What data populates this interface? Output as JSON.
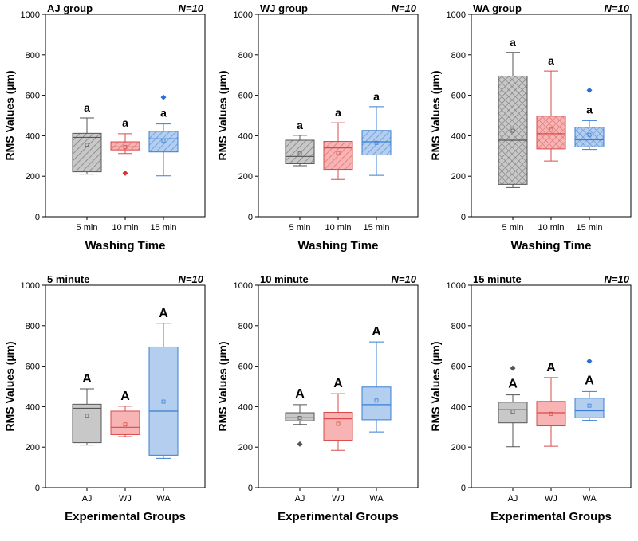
{
  "colors": {
    "gray_fill": "#c8c8c8",
    "gray_stroke": "#555555",
    "red_fill": "#f8b4b4",
    "red_stroke": "#d94a4a",
    "blue_fill": "#b3ceef",
    "blue_stroke": "#3a7ed0",
    "outlier_gray": "#555555",
    "outlier_red": "#e03030",
    "outlier_blue": "#2a6fd0"
  },
  "chart_data": [
    {
      "type": "box",
      "title": "AJ group",
      "n_label": "N=10",
      "xlabel": "Washing Time",
      "ylabel": "RMS Values (µm)",
      "ylim": [
        0,
        1000
      ],
      "yticks": [
        0,
        200,
        400,
        600,
        800,
        1000
      ],
      "categories": [
        "5 min",
        "10 min",
        "15 min"
      ],
      "pattern": "hatch",
      "annotation_case": "lower",
      "boxes": [
        {
          "label": "5 min",
          "color": "gray",
          "min": 210,
          "q1": 222,
          "median": 392,
          "q3": 412,
          "max": 488,
          "mean": 355,
          "outliers": [],
          "annotation": "a"
        },
        {
          "label": "10 min",
          "color": "red",
          "min": 312,
          "q1": 330,
          "median": 345,
          "q3": 370,
          "max": 410,
          "mean": 345,
          "outliers": [
            215
          ],
          "annotation": "a"
        },
        {
          "label": "15 min",
          "color": "blue",
          "min": 202,
          "q1": 320,
          "median": 385,
          "q3": 422,
          "max": 458,
          "mean": 375,
          "outliers": [
            590
          ],
          "annotation": "a"
        }
      ]
    },
    {
      "type": "box",
      "title": "WJ group",
      "n_label": "N=10",
      "xlabel": "Washing Time",
      "ylabel": "RMS Values (µm)",
      "ylim": [
        0,
        1000
      ],
      "yticks": [
        0,
        200,
        400,
        600,
        800,
        1000
      ],
      "categories": [
        "5 min",
        "10 min",
        "15 min"
      ],
      "pattern": "hatch",
      "annotation_case": "lower",
      "boxes": [
        {
          "label": "5 min",
          "color": "gray",
          "min": 252,
          "q1": 262,
          "median": 298,
          "q3": 378,
          "max": 402,
          "mean": 312,
          "outliers": [],
          "annotation": "a"
        },
        {
          "label": "10 min",
          "color": "red",
          "min": 184,
          "q1": 234,
          "median": 340,
          "q3": 372,
          "max": 464,
          "mean": 315,
          "outliers": [],
          "annotation": "a"
        },
        {
          "label": "15 min",
          "color": "blue",
          "min": 204,
          "q1": 305,
          "median": 370,
          "q3": 426,
          "max": 544,
          "mean": 365,
          "outliers": [],
          "annotation": "a"
        }
      ]
    },
    {
      "type": "box",
      "title": "WA group",
      "n_label": "N=10",
      "xlabel": "Washing Time",
      "ylabel": "RMS Values (µm)",
      "ylim": [
        0,
        1000
      ],
      "yticks": [
        0,
        200,
        400,
        600,
        800,
        1000
      ],
      "categories": [
        "5 min",
        "10 min",
        "15 min"
      ],
      "pattern": "crosshatch",
      "annotation_case": "lower",
      "boxes": [
        {
          "label": "5 min",
          "color": "gray",
          "min": 144,
          "q1": 160,
          "median": 378,
          "q3": 695,
          "max": 812,
          "mean": 425,
          "outliers": [],
          "annotation": "a"
        },
        {
          "label": "10 min",
          "color": "red",
          "min": 275,
          "q1": 335,
          "median": 410,
          "q3": 497,
          "max": 720,
          "mean": 430,
          "outliers": [],
          "annotation": "a"
        },
        {
          "label": "15 min",
          "color": "blue",
          "min": 332,
          "q1": 345,
          "median": 380,
          "q3": 442,
          "max": 475,
          "mean": 405,
          "outliers": [
            625
          ],
          "annotation": "a"
        }
      ]
    },
    {
      "type": "box",
      "title": "5 minute",
      "n_label": "N=10",
      "xlabel": "Experimental Groups",
      "ylabel": "RMS Values (µm)",
      "ylim": [
        0,
        1000
      ],
      "yticks": [
        0,
        200,
        400,
        600,
        800,
        1000
      ],
      "categories": [
        "AJ",
        "WJ",
        "WA"
      ],
      "pattern": "none",
      "annotation_case": "upper",
      "boxes": [
        {
          "label": "AJ",
          "color": "gray",
          "min": 210,
          "q1": 222,
          "median": 392,
          "q3": 412,
          "max": 488,
          "mean": 355,
          "outliers": [],
          "annotation": "A"
        },
        {
          "label": "WJ",
          "color": "red",
          "min": 252,
          "q1": 262,
          "median": 298,
          "q3": 378,
          "max": 402,
          "mean": 312,
          "outliers": [],
          "annotation": "A"
        },
        {
          "label": "WA",
          "color": "blue",
          "min": 144,
          "q1": 160,
          "median": 378,
          "q3": 695,
          "max": 812,
          "mean": 425,
          "outliers": [],
          "annotation": "A"
        }
      ]
    },
    {
      "type": "box",
      "title": "10 minute",
      "n_label": "N=10",
      "xlabel": "Experimental Groups",
      "ylabel": "RMS Values (µm)",
      "ylim": [
        0,
        1000
      ],
      "yticks": [
        0,
        200,
        400,
        600,
        800,
        1000
      ],
      "categories": [
        "AJ",
        "WJ",
        "WA"
      ],
      "pattern": "none",
      "annotation_case": "upper",
      "boxes": [
        {
          "label": "AJ",
          "color": "gray",
          "min": 312,
          "q1": 330,
          "median": 345,
          "q3": 370,
          "max": 410,
          "mean": 345,
          "outliers": [
            215
          ],
          "annotation": "A"
        },
        {
          "label": "WJ",
          "color": "red",
          "min": 184,
          "q1": 234,
          "median": 340,
          "q3": 372,
          "max": 464,
          "mean": 315,
          "outliers": [],
          "annotation": "A"
        },
        {
          "label": "WA",
          "color": "blue",
          "min": 275,
          "q1": 335,
          "median": 410,
          "q3": 497,
          "max": 720,
          "mean": 430,
          "outliers": [],
          "annotation": "A"
        }
      ]
    },
    {
      "type": "box",
      "title": "15 minute",
      "n_label": "N=10",
      "xlabel": "Experimental Groups",
      "ylabel": "RMS Values (µm)",
      "ylim": [
        0,
        1000
      ],
      "yticks": [
        0,
        200,
        400,
        600,
        800,
        1000
      ],
      "categories": [
        "AJ",
        "WJ",
        "WA"
      ],
      "pattern": "none",
      "annotation_case": "upper",
      "boxes": [
        {
          "label": "AJ",
          "color": "gray",
          "min": 202,
          "q1": 320,
          "median": 385,
          "q3": 422,
          "max": 458,
          "mean": 375,
          "outliers": [
            590
          ],
          "annotation": "A"
        },
        {
          "label": "WJ",
          "color": "red",
          "min": 204,
          "q1": 305,
          "median": 370,
          "q3": 426,
          "max": 544,
          "mean": 365,
          "outliers": [],
          "annotation": "A"
        },
        {
          "label": "WA",
          "color": "blue",
          "min": 332,
          "q1": 345,
          "median": 380,
          "q3": 442,
          "max": 475,
          "mean": 405,
          "outliers": [
            625
          ],
          "annotation": "A"
        }
      ]
    }
  ]
}
